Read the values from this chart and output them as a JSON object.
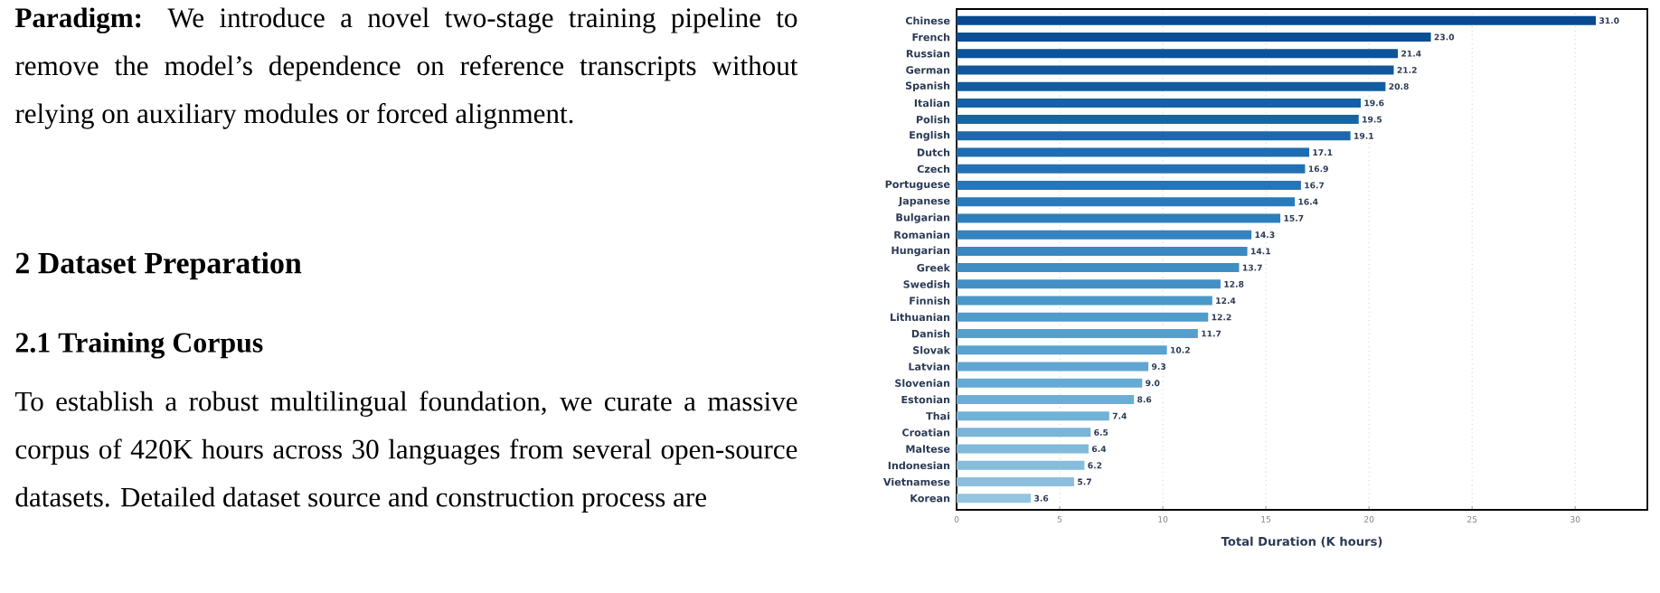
{
  "chart_data": {
    "type": "bar",
    "orientation": "horizontal",
    "xlabel": "Total Duration (K hours)",
    "categories": [
      "Chinese",
      "French",
      "Russian",
      "German",
      "Spanish",
      "Italian",
      "Polish",
      "English",
      "Dutch",
      "Czech",
      "Portuguese",
      "Japanese",
      "Bulgarian",
      "Romanian",
      "Hungarian",
      "Greek",
      "Swedish",
      "Finnish",
      "Lithuanian",
      "Danish",
      "Slovak",
      "Latvian",
      "Slovenian",
      "Estonian",
      "Thai",
      "Croatian",
      "Maltese",
      "Indonesian",
      "Vietnamese",
      "Korean"
    ],
    "values": [
      31.0,
      23.0,
      21.4,
      21.2,
      20.8,
      19.6,
      19.5,
      19.1,
      17.1,
      16.9,
      16.7,
      16.4,
      15.7,
      14.3,
      14.1,
      13.7,
      12.8,
      12.4,
      12.2,
      11.7,
      10.2,
      9.3,
      9.0,
      8.6,
      7.4,
      6.5,
      6.4,
      6.2,
      5.7,
      3.6
    ],
    "value_labels": [
      "31.0",
      "23.0",
      "21.4",
      "21.2",
      "20.8",
      "19.6",
      "19.5",
      "19.1",
      "17.1",
      "16.9",
      "16.7",
      "16.4",
      "15.7",
      "14.3",
      "14.1",
      "13.7",
      "12.8",
      "12.4",
      "12.2",
      "11.7",
      "10.2",
      "9.3",
      "9.0",
      "8.6",
      "7.4",
      "6.5",
      "6.4",
      "6.2",
      "5.7",
      "3.6"
    ],
    "colors": [
      "#084a91",
      "#0a4e95",
      "#0d5399",
      "#10579e",
      "#125ca2",
      "#1560a7",
      "#1764ab",
      "#1b68ae",
      "#1f6cb2",
      "#2271b5",
      "#2675b8",
      "#2a7aba",
      "#2e7ebc",
      "#3483bf",
      "#3a88c2",
      "#3f8ec4",
      "#458fc7",
      "#4a98c9",
      "#4f9bcb",
      "#559fcd",
      "#5aa2cf",
      "#60a6d2",
      "#65aad4",
      "#6aaed6",
      "#72b2d7",
      "#79b5d9",
      "#80b9db",
      "#86bcdc",
      "#8dc0de",
      "#94c4df"
    ],
    "xlim": [
      0,
      33.5
    ],
    "xticks": [
      0,
      5,
      10,
      15,
      20,
      25,
      30
    ],
    "grid": "x",
    "annotations": [
      "**Paradigm:** We introduce a novel two-stage training pipeline to remove the model’s dependence on reference transcripts without relying on auxiliary modules or forced alignment.",
      "2 Dataset Preparation",
      "2.1 Training Corpus",
      "To establish a robust multilingual foundation, we curate a massive corpus of 420K hours across 30 languages from several open-source datasets. Detailed dataset source and construction process are"
    ]
  }
}
